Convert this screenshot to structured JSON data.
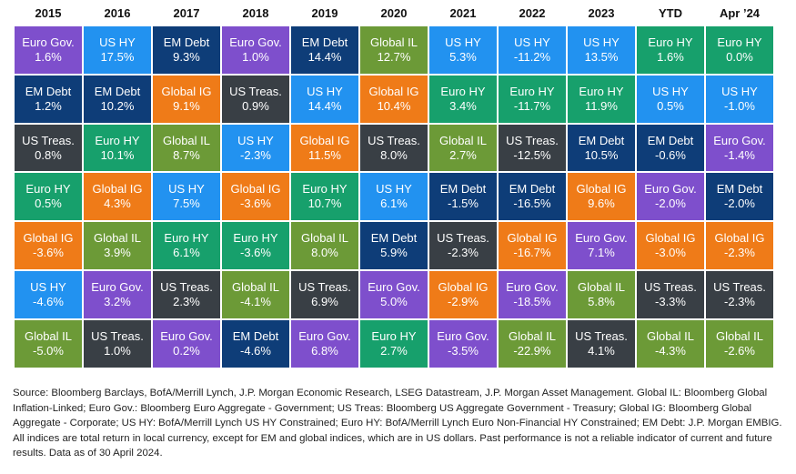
{
  "table": {
    "columns": [
      {
        "header": "2015",
        "cells": [
          {
            "name": "Euro Gov.",
            "value": "1.6%"
          },
          {
            "name": "EM Debt",
            "value": "1.2%"
          },
          {
            "name": "US Treas.",
            "value": "0.8%"
          },
          {
            "name": "Euro HY",
            "value": "0.5%"
          },
          {
            "name": "Global IG",
            "value": "-3.6%"
          },
          {
            "name": "US HY",
            "value": "-4.6%"
          },
          {
            "name": "Global IL",
            "value": "-5.0%"
          }
        ]
      },
      {
        "header": "2016",
        "cells": [
          {
            "name": "US HY",
            "value": "17.5%"
          },
          {
            "name": "EM Debt",
            "value": "10.2%"
          },
          {
            "name": "Euro HY",
            "value": "10.1%"
          },
          {
            "name": "Global IG",
            "value": "4.3%"
          },
          {
            "name": "Global IL",
            "value": "3.9%"
          },
          {
            "name": "Euro Gov.",
            "value": "3.2%"
          },
          {
            "name": "US Treas.",
            "value": "1.0%"
          }
        ]
      },
      {
        "header": "2017",
        "cells": [
          {
            "name": "EM Debt",
            "value": "9.3%"
          },
          {
            "name": "Global IG",
            "value": "9.1%"
          },
          {
            "name": "Global IL",
            "value": "8.7%"
          },
          {
            "name": "US HY",
            "value": "7.5%"
          },
          {
            "name": "Euro HY",
            "value": "6.1%"
          },
          {
            "name": "US Treas.",
            "value": "2.3%"
          },
          {
            "name": "Euro Gov.",
            "value": "0.2%"
          }
        ]
      },
      {
        "header": "2018",
        "cells": [
          {
            "name": "Euro Gov.",
            "value": "1.0%"
          },
          {
            "name": "US Treas.",
            "value": "0.9%"
          },
          {
            "name": "US HY",
            "value": "-2.3%"
          },
          {
            "name": "Global IG",
            "value": "-3.6%"
          },
          {
            "name": "Euro HY",
            "value": "-3.6%"
          },
          {
            "name": "Global IL",
            "value": "-4.1%"
          },
          {
            "name": "EM Debt",
            "value": "-4.6%"
          }
        ]
      },
      {
        "header": "2019",
        "cells": [
          {
            "name": "EM Debt",
            "value": "14.4%"
          },
          {
            "name": "US HY",
            "value": "14.4%"
          },
          {
            "name": "Global IG",
            "value": "11.5%"
          },
          {
            "name": "Euro HY",
            "value": "10.7%"
          },
          {
            "name": "Global IL",
            "value": "8.0%"
          },
          {
            "name": "US Treas.",
            "value": "6.9%"
          },
          {
            "name": "Euro Gov.",
            "value": "6.8%"
          }
        ]
      },
      {
        "header": "2020",
        "cells": [
          {
            "name": "Global IL",
            "value": "12.7%"
          },
          {
            "name": "Global IG",
            "value": "10.4%"
          },
          {
            "name": "US Treas.",
            "value": "8.0%"
          },
          {
            "name": "US HY",
            "value": "6.1%"
          },
          {
            "name": "EM Debt",
            "value": "5.9%"
          },
          {
            "name": "Euro Gov.",
            "value": "5.0%"
          },
          {
            "name": "Euro HY",
            "value": "2.7%"
          }
        ]
      },
      {
        "header": "2021",
        "cells": [
          {
            "name": "US HY",
            "value": "5.3%"
          },
          {
            "name": "Euro HY",
            "value": "3.4%"
          },
          {
            "name": "Global IL",
            "value": "2.7%"
          },
          {
            "name": "EM Debt",
            "value": "-1.5%"
          },
          {
            "name": "US Treas.",
            "value": "-2.3%"
          },
          {
            "name": "Global IG",
            "value": "-2.9%"
          },
          {
            "name": "Euro Gov.",
            "value": "-3.5%"
          }
        ]
      },
      {
        "header": "2022",
        "cells": [
          {
            "name": "US HY",
            "value": "-11.2%"
          },
          {
            "name": "Euro HY",
            "value": "-11.7%"
          },
          {
            "name": "US Treas.",
            "value": "-12.5%"
          },
          {
            "name": "EM Debt",
            "value": "-16.5%"
          },
          {
            "name": "Global IG",
            "value": "-16.7%"
          },
          {
            "name": "Euro Gov.",
            "value": "-18.5%"
          },
          {
            "name": "Global IL",
            "value": "-22.9%"
          }
        ]
      },
      {
        "header": "2023",
        "cells": [
          {
            "name": "US HY",
            "value": "13.5%"
          },
          {
            "name": "Euro HY",
            "value": "11.9%"
          },
          {
            "name": "EM Debt",
            "value": "10.5%"
          },
          {
            "name": "Global IG",
            "value": "9.6%"
          },
          {
            "name": "Euro Gov.",
            "value": "7.1%"
          },
          {
            "name": "Global IL",
            "value": "5.8%"
          },
          {
            "name": "US Treas.",
            "value": "4.1%"
          }
        ]
      },
      {
        "header": "YTD",
        "cells": [
          {
            "name": "Euro HY",
            "value": "1.6%"
          },
          {
            "name": "US HY",
            "value": "0.5%"
          },
          {
            "name": "EM Debt",
            "value": "-0.6%"
          },
          {
            "name": "Euro Gov.",
            "value": "-2.0%"
          },
          {
            "name": "Global IG",
            "value": "-3.0%"
          },
          {
            "name": "US Treas.",
            "value": "-3.3%"
          },
          {
            "name": "Global IL",
            "value": "-4.3%"
          }
        ]
      },
      {
        "header": "Apr ’24",
        "cells": [
          {
            "name": "Euro HY",
            "value": "0.0%"
          },
          {
            "name": "US HY",
            "value": "-1.0%"
          },
          {
            "name": "Euro Gov.",
            "value": "-1.4%"
          },
          {
            "name": "EM Debt",
            "value": "-2.0%"
          },
          {
            "name": "Global IG",
            "value": "-2.3%"
          },
          {
            "name": "US Treas.",
            "value": "-2.3%"
          },
          {
            "name": "Global IL",
            "value": "-2.6%"
          }
        ]
      }
    ]
  },
  "colors": {
    "Euro Gov.": "#7e4fcc",
    "US HY": "#2292f0",
    "EM Debt": "#0e3d78",
    "Global IL": "#6c9a37",
    "Global IG": "#ef7b18",
    "US Treas.": "#393f45",
    "Euro HY": "#17a06c"
  },
  "footnote": "Source: Bloomberg Barclays, BofA/Merrill Lynch, J.P. Morgan Economic Research, LSEG Datastream, J.P. Morgan Asset Management. Global IL: Bloomberg Global Inflation-Linked; Euro Gov.: Bloomberg Euro Aggregate - Government; US Treas: Bloomberg US Aggregate Government - Treasury; Global IG: Bloomberg Global Aggregate - Corporate; US HY: BofA/Merrill Lynch US HY Constrained; Euro HY: BofA/Merrill Lynch Euro Non-Financial HY Constrained; EM Debt: J.P. Morgan EMBIG. All indices are total return in local currency, except for EM and global indices, which are in US dollars. Past performance is not a reliable indicator of current and future results. Data as of 30 April 2024."
}
